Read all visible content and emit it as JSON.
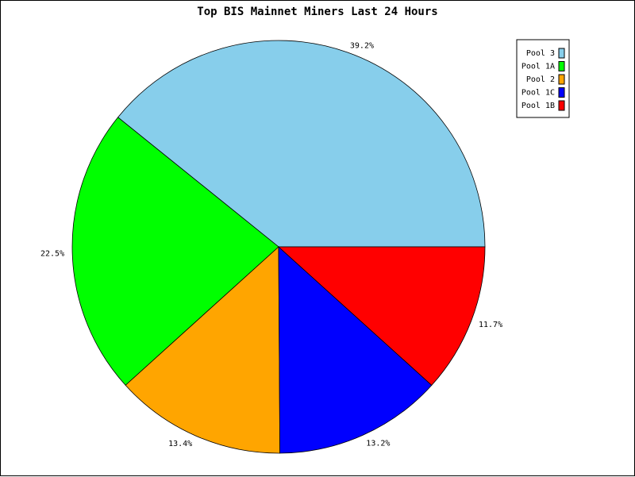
{
  "chart_data": {
    "type": "pie",
    "title": "Top BIS Mainnet Miners Last 24 Hours",
    "legend_position": "top-right",
    "slices": [
      {
        "label": "Pool 3",
        "value": 39.2,
        "percent_label": "39.2%",
        "color": "#87CEEB"
      },
      {
        "label": "Pool 1A",
        "value": 22.5,
        "percent_label": "22.5%",
        "color": "#00FF00"
      },
      {
        "label": "Pool 2",
        "value": 13.4,
        "percent_label": "13.4%",
        "color": "#FFA500"
      },
      {
        "label": "Pool 1C",
        "value": 13.2,
        "percent_label": "13.2%",
        "color": "#0000FF"
      },
      {
        "label": "Pool 1B",
        "value": 11.7,
        "percent_label": "11.7%",
        "color": "#FF0000"
      }
    ]
  }
}
